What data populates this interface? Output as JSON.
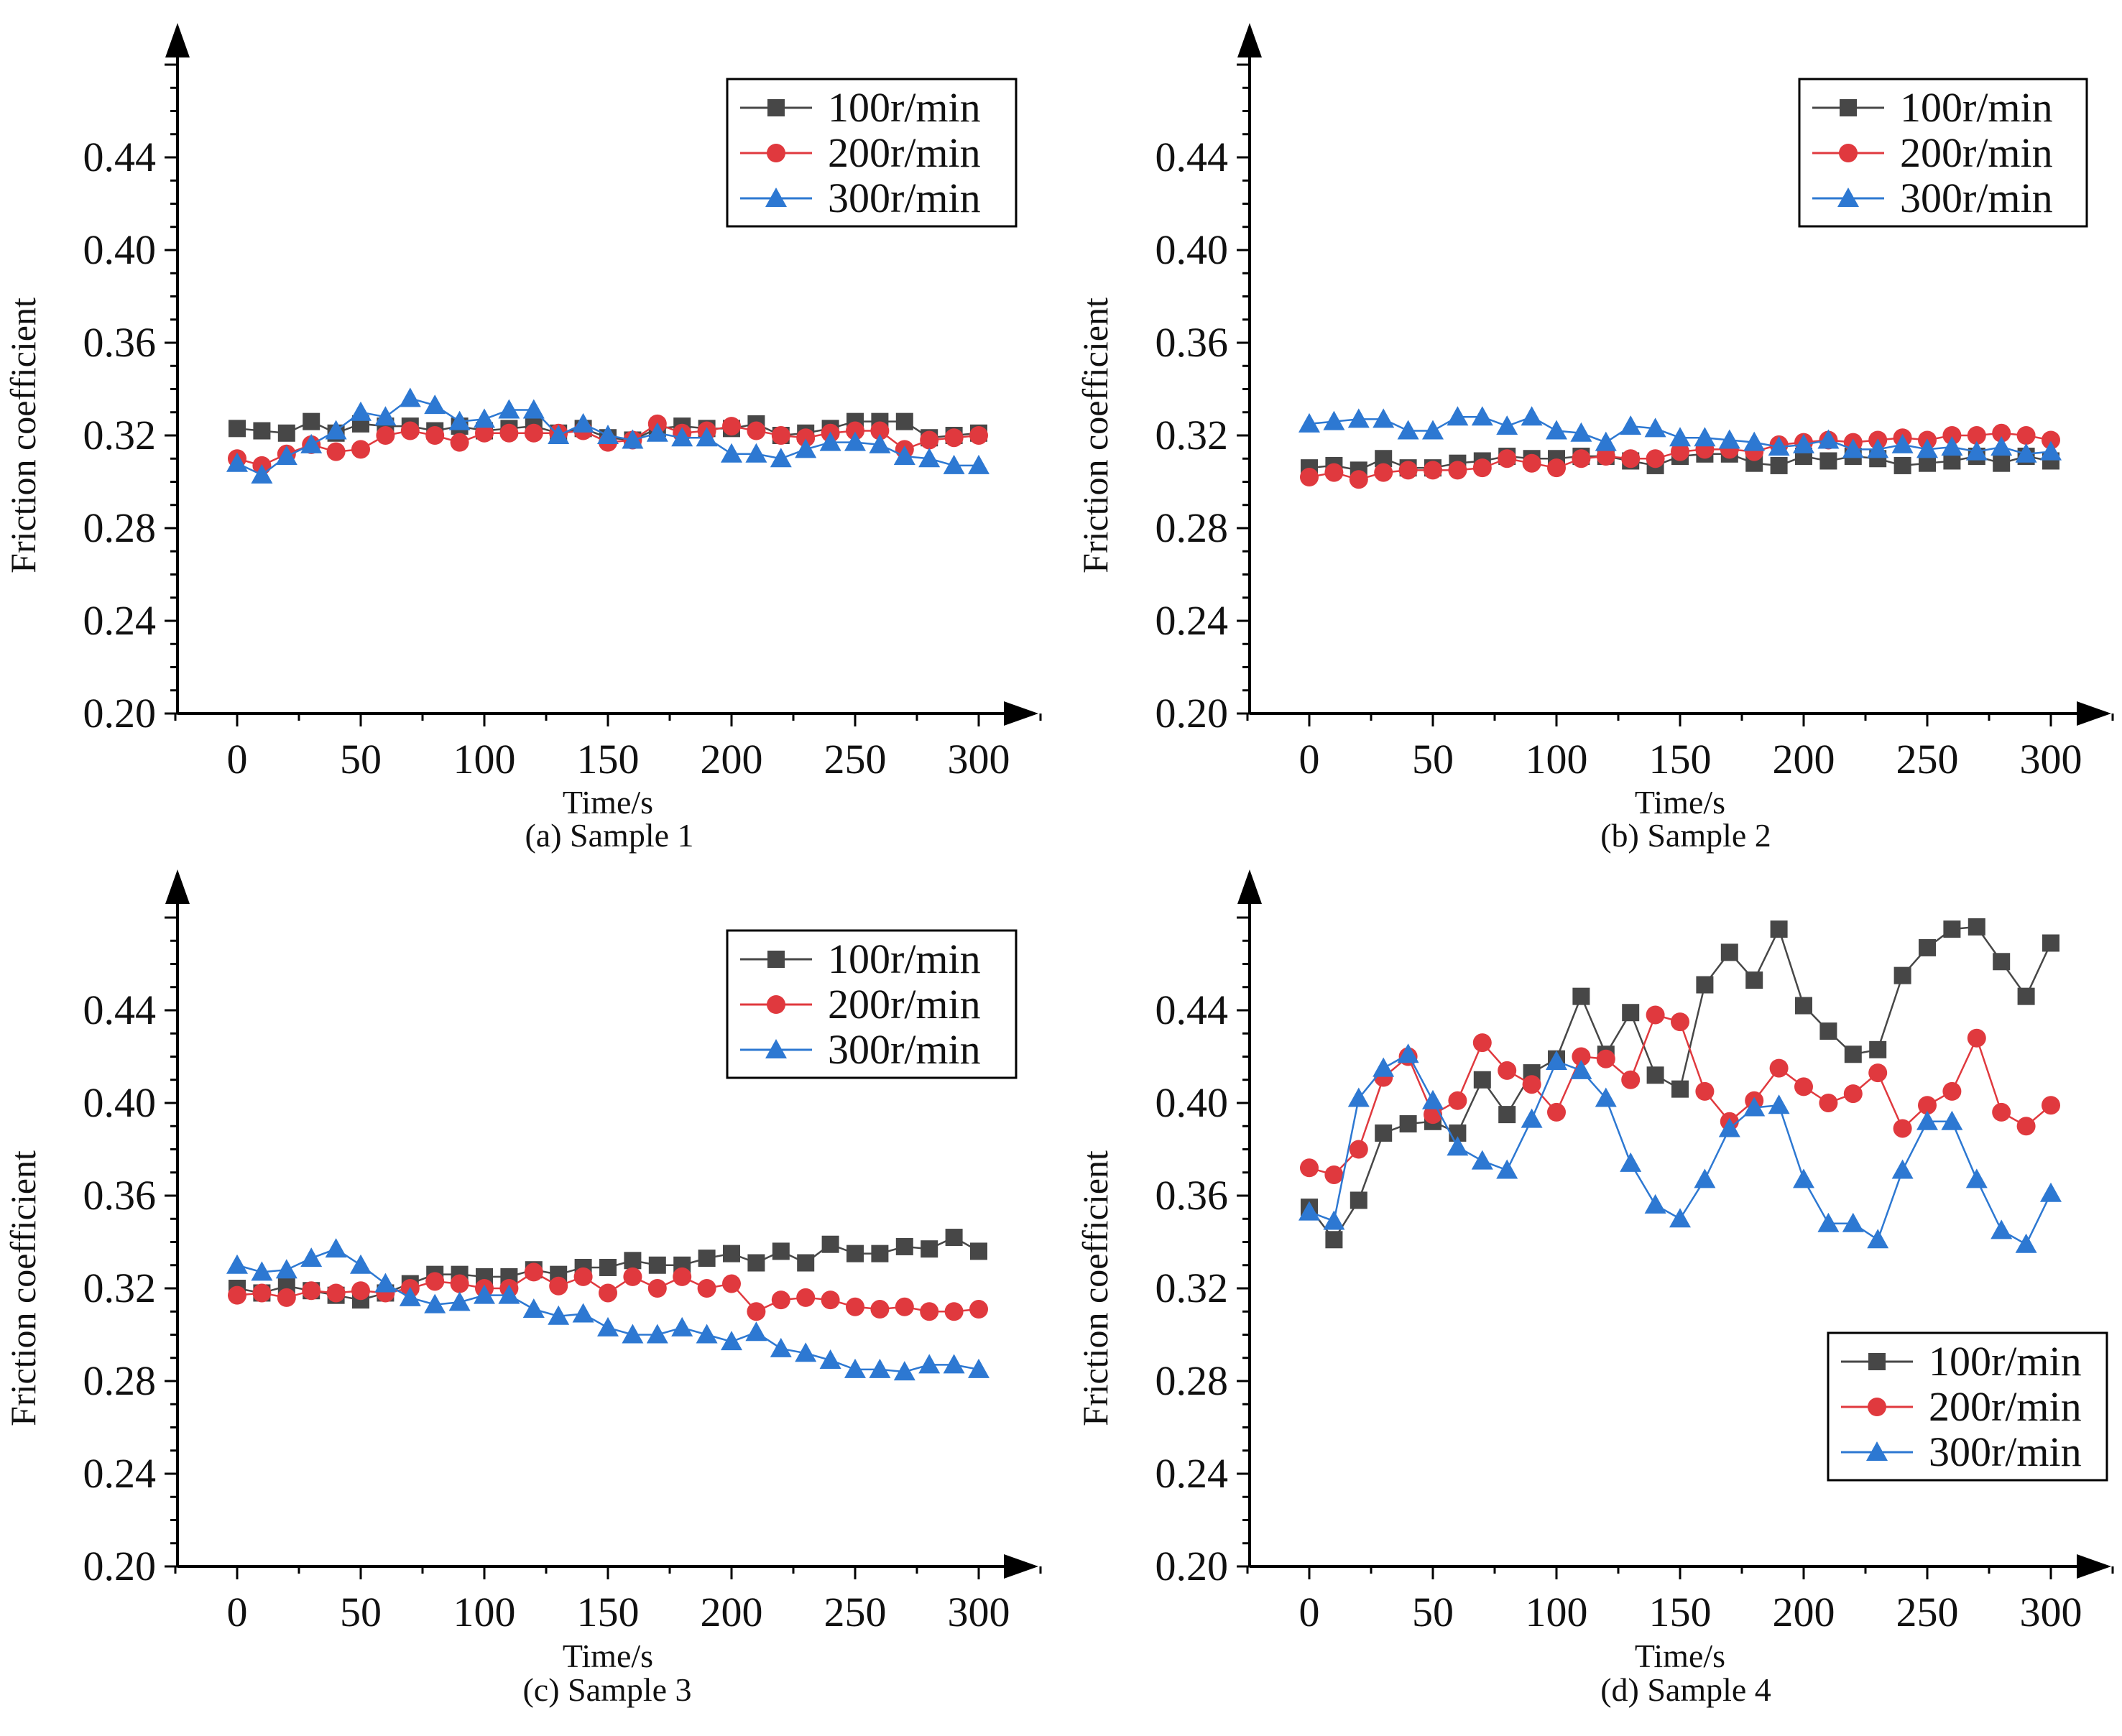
{
  "colors": {
    "s100": "#474747",
    "s200": "#e0393e",
    "s300": "#2d78d2",
    "axis": "#000000"
  },
  "chart_data": [
    {
      "type": "line",
      "caption": "(a) Sample 1",
      "xlabel": "Time/s",
      "ylabel": "Friction coefficient",
      "xlim": [
        -25,
        325
      ],
      "ylim": [
        0.2,
        0.5
      ],
      "xticks": [
        "0",
        "50",
        "100",
        "150",
        "200",
        "250",
        "300"
      ],
      "yticks": [
        "0.20",
        "0.24",
        "0.28",
        "0.32",
        "0.36",
        "0.40",
        "0.44"
      ],
      "legend_position": "top-right",
      "x": [
        0,
        10,
        20,
        30,
        40,
        50,
        60,
        70,
        80,
        90,
        100,
        110,
        120,
        130,
        140,
        150,
        160,
        170,
        180,
        190,
        200,
        210,
        220,
        230,
        240,
        250,
        260,
        270,
        280,
        290,
        300
      ],
      "series": [
        {
          "name": "100r/min",
          "marker": "square",
          "values": [
            0.323,
            0.322,
            0.321,
            0.326,
            0.321,
            0.325,
            0.324,
            0.324,
            0.322,
            0.324,
            0.322,
            0.323,
            0.324,
            0.321,
            0.323,
            0.319,
            0.318,
            0.323,
            0.324,
            0.323,
            0.323,
            0.325,
            0.32,
            0.321,
            0.323,
            0.326,
            0.326,
            0.326,
            0.319,
            0.32,
            0.321
          ]
        },
        {
          "name": "200r/min",
          "marker": "circle",
          "values": [
            0.31,
            0.307,
            0.312,
            0.316,
            0.313,
            0.314,
            0.32,
            0.322,
            0.32,
            0.317,
            0.321,
            0.321,
            0.321,
            0.321,
            0.322,
            0.317,
            0.318,
            0.325,
            0.321,
            0.322,
            0.324,
            0.322,
            0.32,
            0.319,
            0.321,
            0.322,
            0.322,
            0.314,
            0.318,
            0.319,
            0.32
          ]
        },
        {
          "name": "300r/min",
          "marker": "triangle",
          "values": [
            0.308,
            0.303,
            0.311,
            0.316,
            0.322,
            0.33,
            0.328,
            0.336,
            0.333,
            0.326,
            0.327,
            0.331,
            0.331,
            0.32,
            0.325,
            0.32,
            0.318,
            0.321,
            0.319,
            0.319,
            0.312,
            0.312,
            0.31,
            0.314,
            0.317,
            0.317,
            0.316,
            0.311,
            0.31,
            0.307,
            0.307
          ]
        }
      ]
    },
    {
      "type": "line",
      "caption": "(b) Sample 2",
      "xlabel": "Time/s",
      "ylabel": "Friction coefficient",
      "xlim": [
        -25,
        325
      ],
      "ylim": [
        0.2,
        0.5
      ],
      "xticks": [
        "0",
        "50",
        "100",
        "150",
        "200",
        "250",
        "300"
      ],
      "yticks": [
        "0.20",
        "0.24",
        "0.28",
        "0.32",
        "0.36",
        "0.40",
        "0.44"
      ],
      "legend_position": "top-right",
      "x": [
        0,
        10,
        20,
        30,
        40,
        50,
        60,
        70,
        80,
        90,
        100,
        110,
        120,
        130,
        140,
        150,
        160,
        170,
        180,
        190,
        200,
        210,
        220,
        230,
        240,
        250,
        260,
        270,
        280,
        290,
        300
      ],
      "series": [
        {
          "name": "100r/min",
          "marker": "square",
          "values": [
            0.306,
            0.307,
            0.305,
            0.31,
            0.306,
            0.306,
            0.308,
            0.309,
            0.311,
            0.31,
            0.31,
            0.311,
            0.311,
            0.309,
            0.307,
            0.311,
            0.312,
            0.312,
            0.308,
            0.307,
            0.311,
            0.309,
            0.311,
            0.31,
            0.307,
            0.308,
            0.309,
            0.311,
            0.308,
            0.311,
            0.309
          ]
        },
        {
          "name": "200r/min",
          "marker": "circle",
          "values": [
            0.302,
            0.304,
            0.301,
            0.304,
            0.305,
            0.305,
            0.305,
            0.306,
            0.31,
            0.308,
            0.306,
            0.31,
            0.311,
            0.31,
            0.31,
            0.313,
            0.314,
            0.314,
            0.313,
            0.316,
            0.317,
            0.318,
            0.317,
            0.318,
            0.319,
            0.318,
            0.32,
            0.32,
            0.321,
            0.32,
            0.318
          ]
        },
        {
          "name": "300r/min",
          "marker": "triangle",
          "values": [
            0.325,
            0.326,
            0.327,
            0.327,
            0.322,
            0.322,
            0.328,
            0.328,
            0.324,
            0.328,
            0.322,
            0.321,
            0.317,
            0.324,
            0.323,
            0.319,
            0.319,
            0.318,
            0.317,
            0.315,
            0.316,
            0.318,
            0.314,
            0.314,
            0.316,
            0.314,
            0.315,
            0.313,
            0.315,
            0.312,
            0.313
          ]
        }
      ]
    },
    {
      "type": "line",
      "caption": "(c) Sample 3",
      "xlabel": "Time/s",
      "ylabel": "Friction coefficient",
      "xlim": [
        -25,
        325
      ],
      "ylim": [
        0.2,
        0.5
      ],
      "xticks": [
        "0",
        "50",
        "100",
        "150",
        "200",
        "250",
        "300"
      ],
      "yticks": [
        "0.20",
        "0.24",
        "0.28",
        "0.32",
        "0.36",
        "0.40",
        "0.44"
      ],
      "legend_position": "top-right",
      "x": [
        0,
        10,
        20,
        30,
        40,
        50,
        60,
        70,
        80,
        90,
        100,
        110,
        120,
        130,
        140,
        150,
        160,
        170,
        180,
        190,
        200,
        210,
        220,
        230,
        240,
        250,
        260,
        270,
        280,
        290,
        300
      ],
      "series": [
        {
          "name": "100r/min",
          "marker": "square",
          "values": [
            0.32,
            0.318,
            0.321,
            0.319,
            0.317,
            0.315,
            0.318,
            0.322,
            0.326,
            0.326,
            0.325,
            0.325,
            0.328,
            0.326,
            0.329,
            0.329,
            0.332,
            0.33,
            0.33,
            0.333,
            0.335,
            0.331,
            0.336,
            0.331,
            0.339,
            0.335,
            0.335,
            0.338,
            0.337,
            0.342,
            0.336
          ]
        },
        {
          "name": "200r/min",
          "marker": "circle",
          "values": [
            0.317,
            0.318,
            0.316,
            0.319,
            0.318,
            0.319,
            0.318,
            0.32,
            0.323,
            0.322,
            0.32,
            0.32,
            0.327,
            0.321,
            0.325,
            0.318,
            0.325,
            0.32,
            0.325,
            0.32,
            0.322,
            0.31,
            0.315,
            0.316,
            0.315,
            0.312,
            0.311,
            0.312,
            0.31,
            0.31,
            0.311
          ]
        },
        {
          "name": "300r/min",
          "marker": "triangle",
          "values": [
            0.33,
            0.327,
            0.328,
            0.333,
            0.337,
            0.33,
            0.322,
            0.316,
            0.313,
            0.314,
            0.317,
            0.317,
            0.311,
            0.308,
            0.309,
            0.303,
            0.3,
            0.3,
            0.303,
            0.3,
            0.297,
            0.301,
            0.294,
            0.292,
            0.289,
            0.285,
            0.285,
            0.284,
            0.287,
            0.287,
            0.285
          ]
        }
      ]
    },
    {
      "type": "line",
      "caption": "(d) Sample 4",
      "xlabel": "Time/s",
      "ylabel": "Friction coefficient",
      "xlim": [
        -25,
        325
      ],
      "ylim": [
        0.2,
        0.5
      ],
      "xticks": [
        "0",
        "50",
        "100",
        "150",
        "200",
        "250",
        "300"
      ],
      "yticks": [
        "0.20",
        "0.24",
        "0.28",
        "0.32",
        "0.36",
        "0.40",
        "0.44"
      ],
      "legend_position": "bottom-right",
      "x": [
        0,
        10,
        20,
        30,
        40,
        50,
        60,
        70,
        80,
        90,
        100,
        110,
        120,
        130,
        140,
        150,
        160,
        170,
        180,
        190,
        200,
        210,
        220,
        230,
        240,
        250,
        260,
        270,
        280,
        290,
        300
      ],
      "series": [
        {
          "name": "100r/min",
          "marker": "square",
          "values": [
            0.355,
            0.341,
            0.358,
            0.387,
            0.391,
            0.392,
            0.387,
            0.41,
            0.395,
            0.413,
            0.419,
            0.446,
            0.421,
            0.439,
            0.412,
            0.406,
            0.451,
            0.465,
            0.453,
            0.475,
            0.442,
            0.431,
            0.421,
            0.423,
            0.455,
            0.467,
            0.475,
            0.476,
            0.461,
            0.446,
            0.469
          ]
        },
        {
          "name": "200r/min",
          "marker": "circle",
          "values": [
            0.372,
            0.369,
            0.38,
            0.411,
            0.42,
            0.395,
            0.401,
            0.426,
            0.414,
            0.408,
            0.396,
            0.42,
            0.419,
            0.41,
            0.438,
            0.435,
            0.405,
            0.392,
            0.401,
            0.415,
            0.407,
            0.4,
            0.404,
            0.413,
            0.389,
            0.399,
            0.405,
            0.428,
            0.396,
            0.39,
            0.399
          ]
        },
        {
          "name": "300r/min",
          "marker": "triangle",
          "values": [
            0.353,
            0.349,
            0.402,
            0.415,
            0.421,
            0.401,
            0.381,
            0.375,
            0.371,
            0.393,
            0.418,
            0.414,
            0.402,
            0.374,
            0.356,
            0.35,
            0.367,
            0.389,
            0.398,
            0.399,
            0.367,
            0.348,
            0.348,
            0.341,
            0.371,
            0.392,
            0.392,
            0.367,
            0.345,
            0.339,
            0.361
          ]
        }
      ]
    }
  ]
}
